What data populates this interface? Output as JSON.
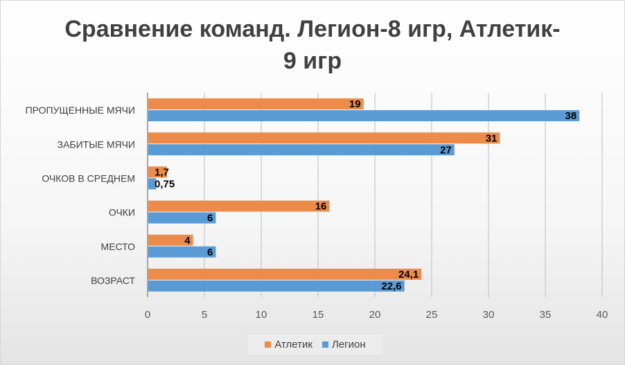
{
  "chart_data": {
    "type": "bar",
    "orientation": "horizontal",
    "title": "Сравнение команд. Легион-8 игр, Атлетик-9 игр",
    "title_lines": [
      "Сравнение команд. Легион-8 игр, Атлетик-",
      "9 игр"
    ],
    "categories": [
      "ПРОПУЩЕННЫЕ МЯЧИ",
      "ЗАБИТЫЕ МЯЧИ",
      "ОЧКОВ В СРЕДНЕМ",
      "ОЧКИ",
      "МЕСТО",
      "ВОЗРАСТ"
    ],
    "series": [
      {
        "name": "Атлетик",
        "color": "#ED8C4A",
        "values": [
          19,
          31,
          1.7,
          16,
          4,
          24.1
        ],
        "labels": [
          "19",
          "31",
          "1,7",
          "16",
          "4",
          "24,1"
        ]
      },
      {
        "name": "Легион",
        "color": "#5B9BD5",
        "values": [
          38,
          27,
          0.75,
          6,
          6,
          22.6
        ],
        "labels": [
          "38",
          "27",
          "0,75",
          "6",
          "6",
          "22,6"
        ]
      }
    ],
    "xlim": [
      0,
      40
    ],
    "x_ticks": [
      0,
      5,
      10,
      15,
      20,
      25,
      30,
      35,
      40
    ],
    "grid": true,
    "legend_position": "bottom",
    "xlabel": "",
    "ylabel": ""
  }
}
